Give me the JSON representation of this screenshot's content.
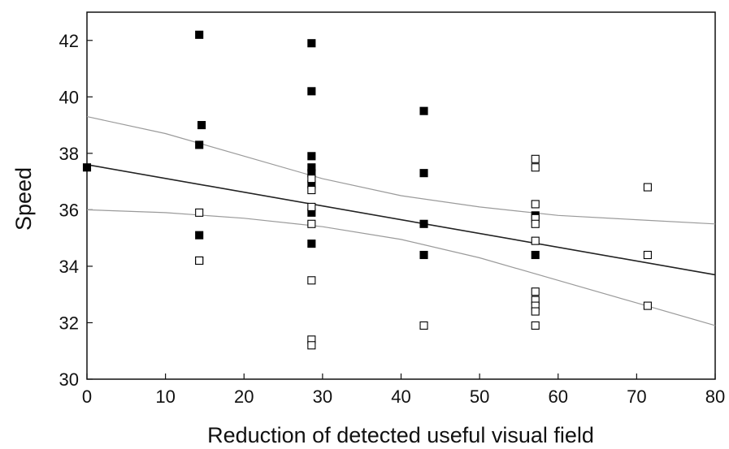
{
  "chart_data": {
    "type": "scatter",
    "title": "",
    "xlabel": "Reduction of detected useful visual field",
    "ylabel": "Speed",
    "xlim": [
      0,
      80
    ],
    "ylim": [
      30,
      43
    ],
    "xticks": [
      0,
      10,
      20,
      30,
      40,
      50,
      60,
      70,
      80
    ],
    "yticks": [
      30,
      32,
      34,
      36,
      38,
      40,
      42
    ],
    "grid": false,
    "series": [
      {
        "marker": "filled-square",
        "color": "#000000",
        "points": [
          {
            "x": 0,
            "y": 37.5
          },
          {
            "x": 14.3,
            "y": 42.2
          },
          {
            "x": 14.6,
            "y": 39.0
          },
          {
            "x": 14.3,
            "y": 38.3
          },
          {
            "x": 14.3,
            "y": 35.1
          },
          {
            "x": 14.3,
            "y": 34.2
          },
          {
            "x": 28.6,
            "y": 41.9
          },
          {
            "x": 28.6,
            "y": 40.2
          },
          {
            "x": 28.6,
            "y": 37.9
          },
          {
            "x": 28.6,
            "y": 37.5
          },
          {
            "x": 28.6,
            "y": 37.3
          },
          {
            "x": 28.6,
            "y": 36.9
          },
          {
            "x": 28.6,
            "y": 35.9
          },
          {
            "x": 28.6,
            "y": 34.8
          },
          {
            "x": 42.9,
            "y": 39.5
          },
          {
            "x": 42.9,
            "y": 37.3
          },
          {
            "x": 42.9,
            "y": 35.5
          },
          {
            "x": 42.9,
            "y": 34.4
          },
          {
            "x": 57.1,
            "y": 35.8
          },
          {
            "x": 57.1,
            "y": 34.4
          }
        ]
      },
      {
        "marker": "open-square",
        "color": "#000000",
        "points": [
          {
            "x": 14.3,
            "y": 35.9
          },
          {
            "x": 14.3,
            "y": 34.2
          },
          {
            "x": 28.6,
            "y": 37.1
          },
          {
            "x": 28.6,
            "y": 36.7
          },
          {
            "x": 28.6,
            "y": 36.1
          },
          {
            "x": 28.6,
            "y": 35.5
          },
          {
            "x": 28.6,
            "y": 33.5
          },
          {
            "x": 28.6,
            "y": 31.4
          },
          {
            "x": 28.6,
            "y": 31.2
          },
          {
            "x": 42.9,
            "y": 31.9
          },
          {
            "x": 57.1,
            "y": 37.8
          },
          {
            "x": 57.1,
            "y": 37.5
          },
          {
            "x": 57.1,
            "y": 36.2
          },
          {
            "x": 57.1,
            "y": 35.7
          },
          {
            "x": 57.1,
            "y": 35.5
          },
          {
            "x": 57.1,
            "y": 34.9
          },
          {
            "x": 57.1,
            "y": 33.1
          },
          {
            "x": 57.1,
            "y": 32.8
          },
          {
            "x": 57.1,
            "y": 32.6
          },
          {
            "x": 57.1,
            "y": 32.4
          },
          {
            "x": 57.1,
            "y": 31.9
          },
          {
            "x": 71.4,
            "y": 36.8
          },
          {
            "x": 71.4,
            "y": 34.4
          },
          {
            "x": 71.4,
            "y": 32.6
          }
        ]
      }
    ],
    "lines": [
      {
        "kind": "regression",
        "color": "#222222",
        "points": [
          [
            0,
            37.6
          ],
          [
            80,
            33.7
          ]
        ]
      },
      {
        "kind": "confidence-upper",
        "color": "#9a9a9a",
        "points": [
          [
            0,
            39.3
          ],
          [
            10,
            38.7
          ],
          [
            20,
            37.9
          ],
          [
            30,
            37.1
          ],
          [
            40,
            36.5
          ],
          [
            50,
            36.1
          ],
          [
            60,
            35.8
          ],
          [
            70,
            35.65
          ],
          [
            80,
            35.5
          ]
        ]
      },
      {
        "kind": "confidence-lower",
        "color": "#9a9a9a",
        "points": [
          [
            0,
            36.0
          ],
          [
            10,
            35.9
          ],
          [
            20,
            35.7
          ],
          [
            30,
            35.4
          ],
          [
            40,
            34.95
          ],
          [
            50,
            34.3
          ],
          [
            60,
            33.5
          ],
          [
            70,
            32.7
          ],
          [
            80,
            31.9
          ]
        ]
      }
    ]
  }
}
